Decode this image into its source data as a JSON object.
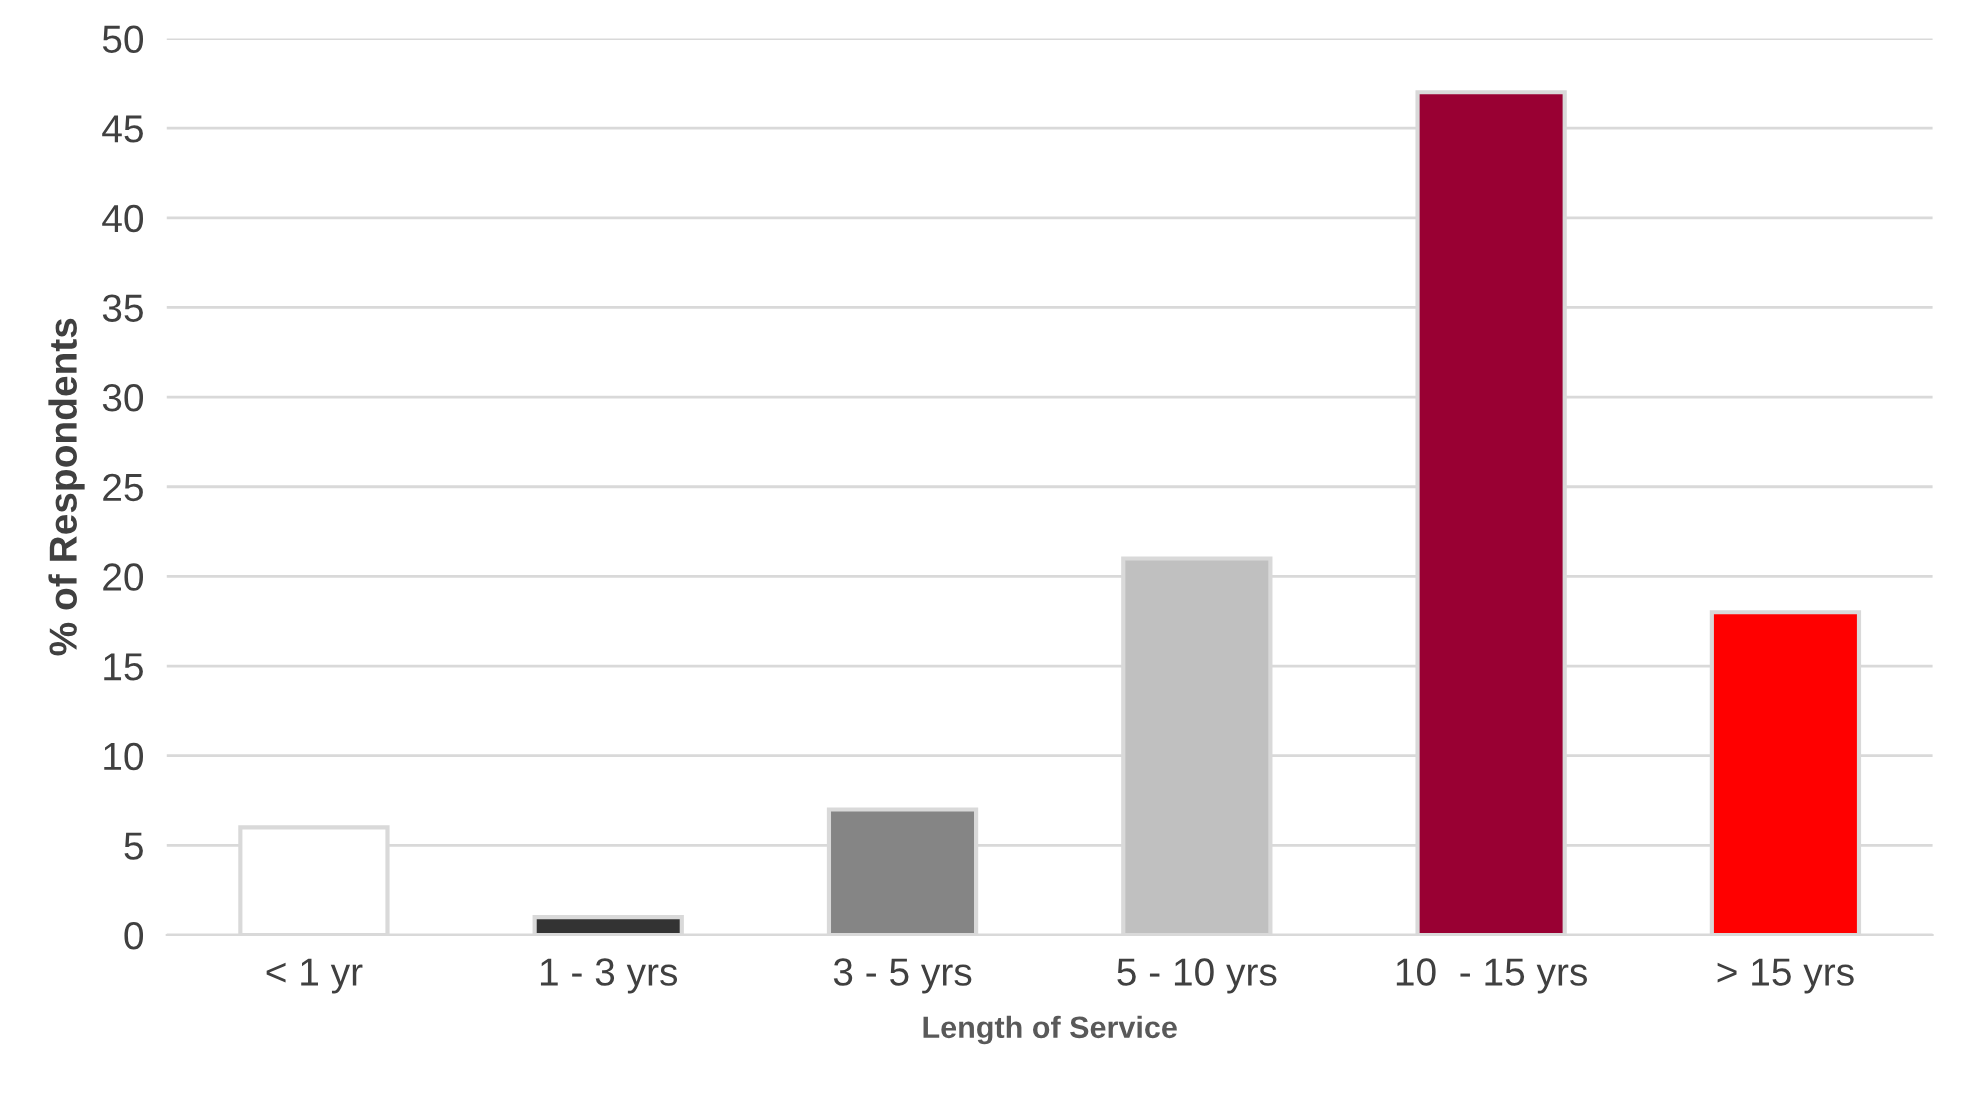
{
  "chart_data": {
    "type": "bar",
    "xlabel": "Length of Service",
    "ylabel": "% of Respondents",
    "categories": [
      "< 1 yr",
      "1 - 3 yrs",
      "3 - 5 yrs",
      "5 - 10 yrs",
      "10  - 15 yrs",
      "> 15 yrs"
    ],
    "values": [
      6,
      1,
      7,
      21,
      47,
      18
    ],
    "colors": [
      "#ffffff",
      "#333333",
      "#858585",
      "#c0c0c0",
      "#990033",
      "#ff0000"
    ],
    "ylim": [
      0,
      50
    ],
    "yticks": [
      0,
      5,
      10,
      15,
      20,
      25,
      30,
      35,
      40,
      45,
      50
    ],
    "grid": "y"
  }
}
